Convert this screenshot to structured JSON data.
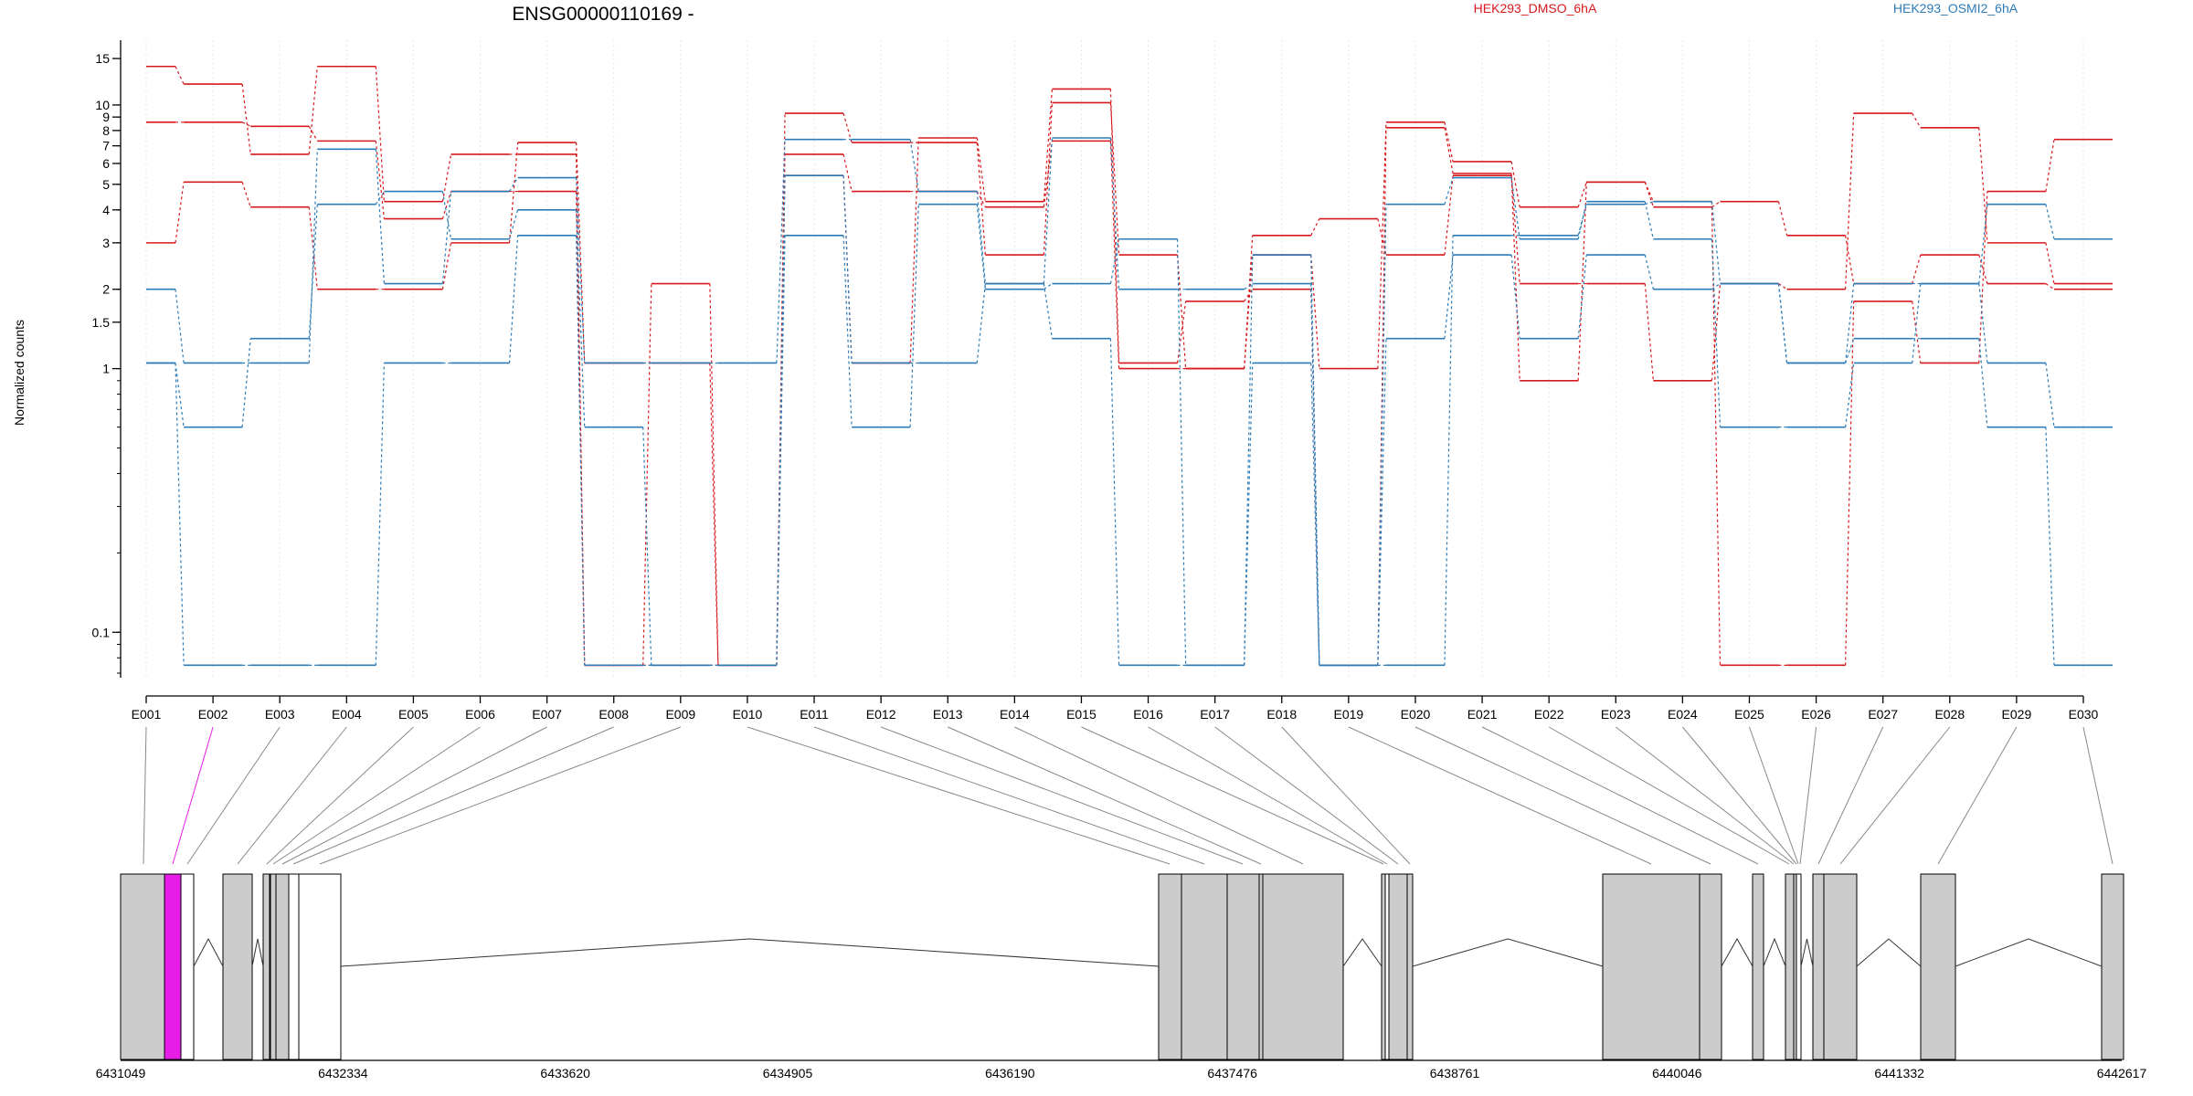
{
  "chart_data": {
    "type": "line",
    "title": "ENSG00000110169 -",
    "ylabel": "Normalized counts",
    "y_scale": "log",
    "ylim": [
      0.07,
      16
    ],
    "y_ticks": [
      {
        "value": 0.1,
        "label": "0.1"
      },
      {
        "value": 1,
        "label": "1"
      },
      {
        "value": 1.5,
        "label": "1.5"
      },
      {
        "value": 2,
        "label": "2"
      },
      {
        "value": 3,
        "label": "3"
      },
      {
        "value": 4,
        "label": "4"
      },
      {
        "value": 5,
        "label": "5"
      },
      {
        "value": 6,
        "label": "6"
      },
      {
        "value": 7,
        "label": "7"
      },
      {
        "value": 8,
        "label": "8"
      },
      {
        "value": 9,
        "label": "9"
      },
      {
        "value": 10,
        "label": "10"
      },
      {
        "value": 15,
        "label": "15"
      }
    ],
    "categories": [
      "E001",
      "E002",
      "E003",
      "E004",
      "E005",
      "E006",
      "E007",
      "E008",
      "E009",
      "E010",
      "E011",
      "E012",
      "E013",
      "E014",
      "E015",
      "E016",
      "E017",
      "E018",
      "E019",
      "E020",
      "E021",
      "E022",
      "E023",
      "E024",
      "E025",
      "E026",
      "E027",
      "E028",
      "E029",
      "E030"
    ],
    "highlighted_exon": "E002",
    "legend": [
      {
        "name": "HEK293_DMSO_6hA",
        "color": "#d7191c"
      },
      {
        "name": "HEK293_OSMI2_6hA",
        "color": "#2c7bb6"
      }
    ],
    "series": [
      {
        "group": "HEK293_DMSO_6hA",
        "color": "#d7191c",
        "values": [
          14,
          12,
          6.5,
          14,
          4.3,
          6.5,
          6.5,
          0.075,
          2.1,
          0.075,
          9.3,
          7.2,
          7.2,
          2.7,
          10.2,
          2.7,
          1.0,
          3.2,
          3.7,
          2.7,
          5.4,
          2.1,
          2.1,
          0.9,
          2.1,
          2.0,
          9.3,
          8.2,
          3.0,
          2.1
        ]
      },
      {
        "group": "HEK293_DMSO_6hA",
        "color": "#d7191c",
        "values": [
          8.6,
          8.6,
          8.3,
          7.3,
          3.7,
          4.7,
          4.7,
          0.075,
          0.075,
          0.075,
          6.5,
          4.7,
          4.7,
          4.1,
          7.3,
          1.0,
          1.0,
          2.7,
          1.0,
          8.6,
          6.1,
          4.1,
          5.1,
          4.1,
          4.3,
          3.2,
          2.1,
          2.7,
          2.1,
          2.0
        ]
      },
      {
        "group": "HEK293_DMSO_6hA",
        "color": "#d7191c",
        "values": [
          3.0,
          5.1,
          4.1,
          2.0,
          2.0,
          3.0,
          7.2,
          1.05,
          1.05,
          0.075,
          5.4,
          1.05,
          7.5,
          4.3,
          11.5,
          1.05,
          1.8,
          2.0,
          0.075,
          8.2,
          5.5,
          0.9,
          5.1,
          4.3,
          0.075,
          0.075,
          1.8,
          1.05,
          4.7,
          7.4
        ]
      },
      {
        "group": "HEK293_OSMI2_6hA",
        "color": "#2c7bb6",
        "values": [
          2.0,
          1.05,
          1.05,
          6.8,
          2.1,
          4.7,
          5.3,
          1.05,
          1.05,
          1.05,
          7.4,
          7.4,
          4.7,
          2.1,
          7.5,
          2.0,
          2.0,
          2.1,
          0.075,
          4.2,
          5.3,
          3.1,
          4.3,
          3.1,
          0.6,
          0.6,
          1.05,
          2.1,
          1.05,
          0.6
        ]
      },
      {
        "group": "HEK293_OSMI2_6hA",
        "color": "#2c7bb6",
        "values": [
          1.05,
          0.6,
          1.3,
          4.2,
          4.7,
          3.1,
          4.0,
          0.6,
          0.075,
          0.075,
          3.2,
          0.6,
          4.2,
          2.0,
          2.1,
          3.1,
          0.075,
          1.05,
          0.075,
          1.3,
          2.7,
          1.3,
          2.7,
          2.0,
          2.1,
          1.05,
          1.3,
          1.3,
          0.6,
          0.075
        ]
      },
      {
        "group": "HEK293_OSMI2_6hA",
        "color": "#2c7bb6",
        "values": [
          1.05,
          0.075,
          0.075,
          0.075,
          1.05,
          1.05,
          3.2,
          0.075,
          0.075,
          0.075,
          5.4,
          1.05,
          1.05,
          2.1,
          1.3,
          0.075,
          0.075,
          2.7,
          0.075,
          0.075,
          3.2,
          3.2,
          4.2,
          4.3,
          2.1,
          1.05,
          2.1,
          2.1,
          4.2,
          3.1
        ]
      }
    ],
    "gene_model": {
      "axis_tick_labels": [
        "6431049",
        "6432334",
        "6433620",
        "6434905",
        "6436190",
        "6437476",
        "6438761",
        "6440046",
        "6441332",
        "6442617"
      ],
      "axis_range": [
        6431049,
        6442617
      ],
      "exon_fill_color": "#cccccc",
      "highlight_color": "#e61de6"
    }
  }
}
